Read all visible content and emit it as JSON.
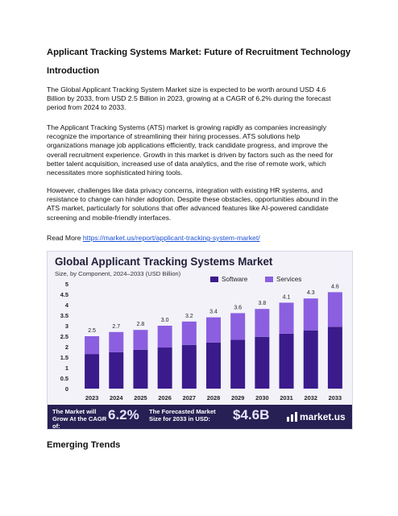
{
  "document": {
    "title": "Applicant Tracking Systems Market: Future of Recruitment Technology",
    "intro_heading": "Introduction",
    "p1_lines": [
      "The Global Applicant Tracking System Market size is expected to be worth around USD 4.6",
      "Billion by 2033, from USD 2.5 Billion in 2023, growing at a CAGR of 6.2% during the forecast",
      "period from 2024 to 2033."
    ],
    "p2_lines": [
      "The Applicant Tracking Systems (ATS) market is growing rapidly as companies increasingly",
      "recognize the importance of streamlining their hiring processes. ATS solutions help",
      "organizations manage job applications efficiently, track candidate progress, and improve the",
      "overall recruitment experience. Growth in this market is driven by factors such as the need for",
      "better talent acquisition, increased use of data analytics, and the rise of remote work, which",
      "necessitates more sophisticated hiring tools."
    ],
    "p3_lines": [
      "However, challenges like data privacy concerns, integration with existing HR systems, and",
      "resistance to change can hinder adoption. Despite these obstacles, opportunities abound in the",
      "ATS market, particularly for solutions that offer advanced features like AI-powered candidate",
      "screening and mobile-friendly interfaces."
    ],
    "read_more_label": "Read More",
    "read_more_link": "https://market.us/report/applicant-tracking-system-market/",
    "next_heading": "Emerging Trends"
  },
  "infographic": {
    "footer_left_text": "The Market will Grow At the CAGR of:",
    "footer_left_value": "6.2%",
    "footer_mid_text": "The Forecasted Market Size for 2033 in USD:",
    "footer_mid_value": "$4.6B",
    "logo_text": "market.us",
    "logo_icon": "market-us-logo-icon"
  },
  "chart_data": {
    "type": "bar",
    "stacked": true,
    "title": "Global Applicant Tracking Systems Market",
    "subtitle": "Size, by Component, 2024–2033 (USD Billion)",
    "categories": [
      "2023",
      "2024",
      "2025",
      "2026",
      "2027",
      "2028",
      "2029",
      "2030",
      "2031",
      "2032",
      "2033"
    ],
    "series": [
      {
        "name": "Software",
        "color": "#3b1a8c",
        "values": [
          1.65,
          1.74,
          1.85,
          1.96,
          2.08,
          2.2,
          2.33,
          2.47,
          2.62,
          2.78,
          2.95
        ]
      },
      {
        "name": "Services",
        "color": "#8b5fe0",
        "values": [
          0.85,
          0.96,
          0.95,
          1.04,
          1.12,
          1.2,
          1.27,
          1.33,
          1.48,
          1.52,
          1.65
        ]
      }
    ],
    "totals": [
      2.5,
      2.7,
      2.8,
      3.0,
      3.2,
      3.4,
      3.6,
      3.8,
      4.1,
      4.3,
      4.6
    ],
    "total_labels": [
      "2.5",
      "2.7",
      "2.8",
      "3.0",
      "3.2",
      "3.4",
      "3.6",
      "3.8",
      "4.1",
      "4.3",
      "4.6"
    ],
    "y_ticks": [
      "0",
      "0.5",
      "1",
      "1.5",
      "2",
      "2.5",
      "3",
      "3.5",
      "4",
      "4.5",
      "5"
    ],
    "ylim": [
      0,
      5
    ],
    "legend_position": "top-right",
    "grid": false
  }
}
